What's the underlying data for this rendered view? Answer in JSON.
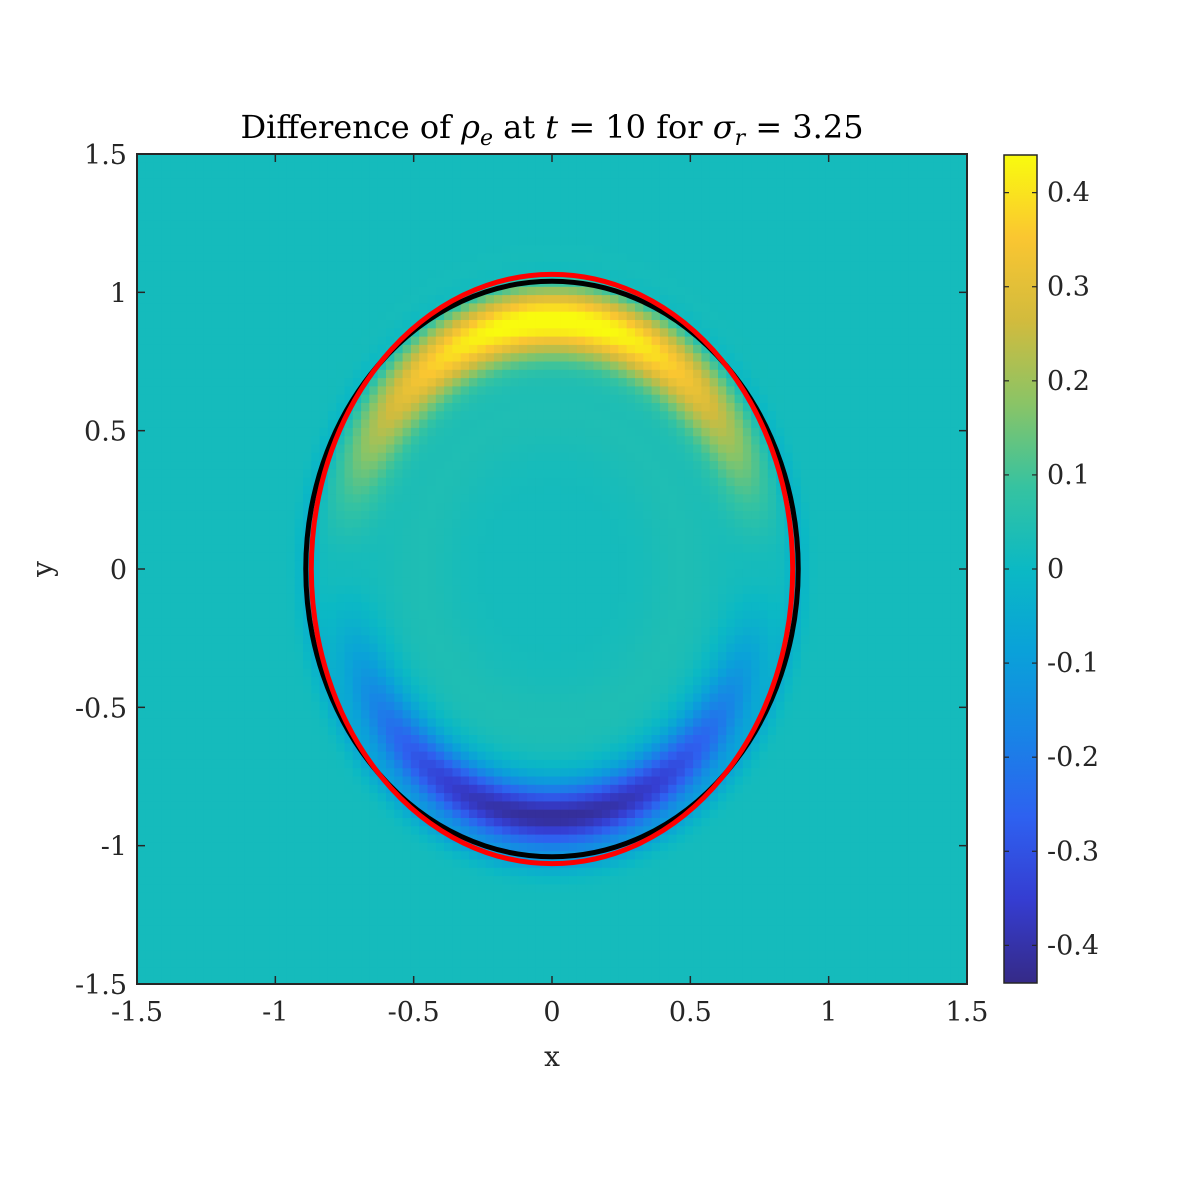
{
  "chart_data": {
    "type": "heatmap",
    "title": {
      "prefix": "Difference of ",
      "rho": "ρ",
      "rho_sub": "e",
      "mid": " at ",
      "t_var": "t",
      "t_eq": " = 10 for ",
      "sigma": "σ",
      "sigma_sub": "r",
      "sigma_eq": " = 3.25"
    },
    "xlabel": "x",
    "ylabel": "y",
    "xlim": [
      -1.5,
      1.5
    ],
    "ylim": [
      -1.5,
      1.5
    ],
    "x_ticks": [
      -1.5,
      -1,
      -0.5,
      0,
      0.5,
      1,
      1.5
    ],
    "x_tick_labels": [
      "-1.5",
      "-1",
      "-0.5",
      "0",
      "0.5",
      "1",
      "1.5"
    ],
    "y_ticks": [
      -1.5,
      -1,
      -0.5,
      0,
      0.5,
      1,
      1.5
    ],
    "y_tick_labels": [
      "-1.5",
      "-1",
      "-0.5",
      "0",
      "0.5",
      "1",
      "1.5"
    ],
    "colorbar": {
      "lim": [
        -0.44,
        0.44
      ],
      "ticks": [
        -0.4,
        -0.3,
        -0.2,
        -0.1,
        0,
        0.1,
        0.2,
        0.3,
        0.4
      ],
      "tick_labels": [
        "-0.4",
        "-0.3",
        "-0.2",
        "-0.1",
        "0",
        "0.1",
        "0.2",
        "0.3",
        "0.4"
      ],
      "colormap": "parula"
    },
    "field": {
      "background": 0.02,
      "upper_band": {
        "peak": 0.44,
        "center_y": 0.92
      },
      "lower_band": {
        "peak": -0.44,
        "center_y": -0.93
      }
    },
    "contours": [
      {
        "name": "",
        "color": "#000000",
        "center": [
          0,
          0
        ],
        "semi_x": 0.89,
        "semi_y": 1.04
      },
      {
        "name": "",
        "color": "#ff0000",
        "center": [
          0,
          0
        ],
        "semi_x": 0.87,
        "semi_y": 1.065
      }
    ],
    "grid": false,
    "legend": "none"
  }
}
